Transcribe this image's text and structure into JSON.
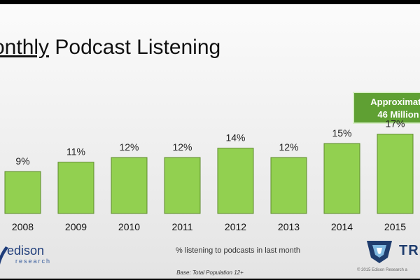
{
  "slide": {
    "title_prefix": "onthly",
    "title_rest": " Podcast Listening"
  },
  "callout": {
    "line1": "Approximate",
    "line2": "46 Million"
  },
  "chart_data": {
    "type": "bar",
    "title": "onthly Podcast Listening",
    "categories": [
      "2008",
      "2009",
      "2010",
      "2011",
      "2012",
      "2013",
      "2014",
      "2015"
    ],
    "values": [
      9,
      11,
      12,
      12,
      14,
      12,
      15,
      17
    ],
    "value_labels": [
      "9%",
      "11%",
      "12%",
      "12%",
      "14%",
      "12%",
      "15%",
      "17%"
    ],
    "xlabel": "% listening to podcasts in last month",
    "ylabel": "",
    "ylim": [
      0,
      30
    ],
    "grid": false,
    "bar_color": "#92d050"
  },
  "footer": {
    "base": "Base: Total Population 12+",
    "copyright": "© 2015 Edison Research a"
  },
  "logos": {
    "edison_word": "edison",
    "edison_sub": "research",
    "triton_word": "TRIT"
  }
}
